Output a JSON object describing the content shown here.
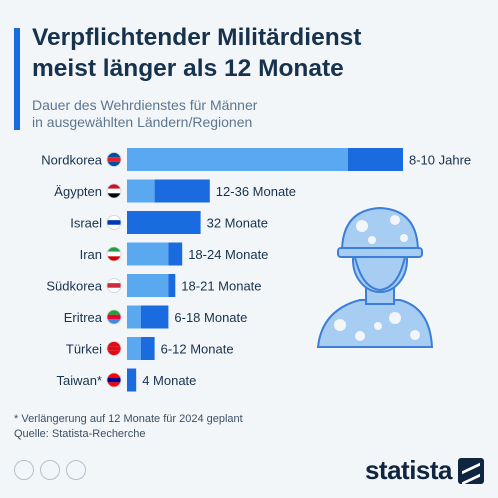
{
  "header": {
    "title": "Verpflichtender Militärdienst\nmeist länger als 12 Monate",
    "subtitle": "Dauer des Wehrdienstes für Männer\nin ausgewählten Ländern/Regionen"
  },
  "colors": {
    "accent": "#1a6ae0",
    "bar_min": "#5aa9f0",
    "bar_range": "#1a6ae0",
    "icon": "#a8cdf3",
    "icon_outline": "#3c7fd8",
    "text": "#17324d"
  },
  "chart_data": {
    "type": "bar",
    "orientation": "horizontal",
    "unit": "months",
    "categories": [
      "Nordkorea",
      "Ägypten",
      "Israel",
      "Iran",
      "Südkorea",
      "Eritrea",
      "Türkei",
      "Taiwan*"
    ],
    "min_values": [
      96,
      12,
      32,
      18,
      18,
      6,
      6,
      4
    ],
    "max_values": [
      120,
      36,
      32,
      24,
      21,
      18,
      12,
      4
    ],
    "value_labels": [
      "8-10 Jahre",
      "12-36 Monate",
      "32 Monate",
      "18-24 Monate",
      "18-21 Monate",
      "6-18 Monate",
      "6-12 Monate",
      "4 Monate"
    ],
    "flags": [
      "north-korea-flag-icon",
      "egypt-flag-icon",
      "israel-flag-icon",
      "iran-flag-icon",
      "south-korea-flag-icon",
      "eritrea-flag-icon",
      "turkey-flag-icon",
      "taiwan-flag-icon"
    ],
    "xlim": [
      0,
      120
    ]
  },
  "footer": {
    "footnote": "* Verlängerung auf 12 Monate für 2024 geplant",
    "source": "Quelle: Statista-Recherche",
    "brand": "statista"
  }
}
